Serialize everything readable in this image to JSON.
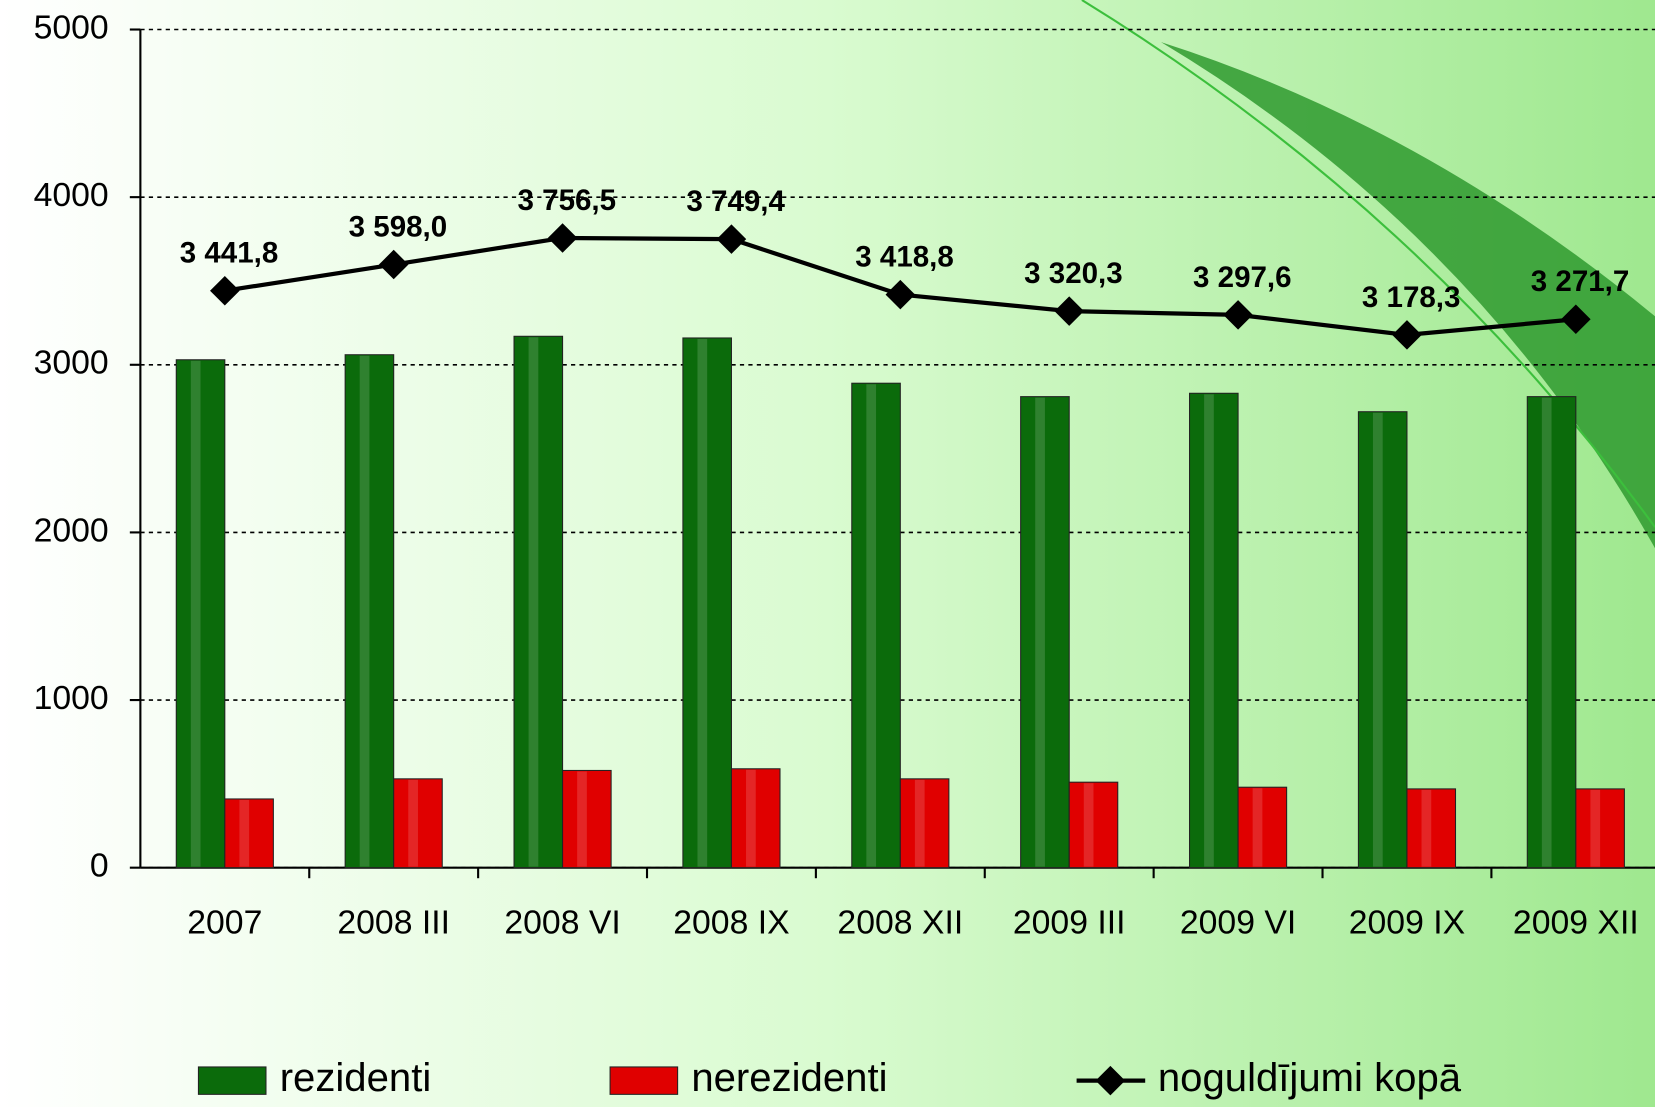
{
  "chart_data": {
    "type": "bar",
    "categories": [
      "2007",
      "2008 III",
      "2008 VI",
      "2008 IX",
      "2008 XII",
      "2009 III",
      "2009 VI",
      "2009 IX",
      "2009 XII"
    ],
    "series": [
      {
        "name": "rezidenti",
        "color": "#0b6b0b",
        "values": [
          3030,
          3060,
          3170,
          3160,
          2890,
          2810,
          2830,
          2720,
          2810
        ]
      },
      {
        "name": "nerezidenti",
        "color": "#e00000",
        "values": [
          410,
          530,
          580,
          590,
          530,
          510,
          480,
          470,
          470
        ]
      },
      {
        "name": "noguldījumi kopā",
        "type": "line",
        "color": "#000000",
        "values": [
          3441.8,
          3598.0,
          3756.5,
          3749.4,
          3418.8,
          3320.3,
          3297.6,
          3178.3,
          3271.7
        ],
        "value_labels": [
          "3 441,8",
          "3 598,0",
          "3 756,5",
          "3 749,4",
          "3 418,8",
          "3 320,3",
          "3 297,6",
          "3 178,3",
          "3 271,7"
        ]
      }
    ],
    "ylim": [
      0,
      5000
    ],
    "yticks": [
      0,
      1000,
      2000,
      3000,
      4000,
      5000
    ],
    "grid": true,
    "legend": "bottom"
  }
}
